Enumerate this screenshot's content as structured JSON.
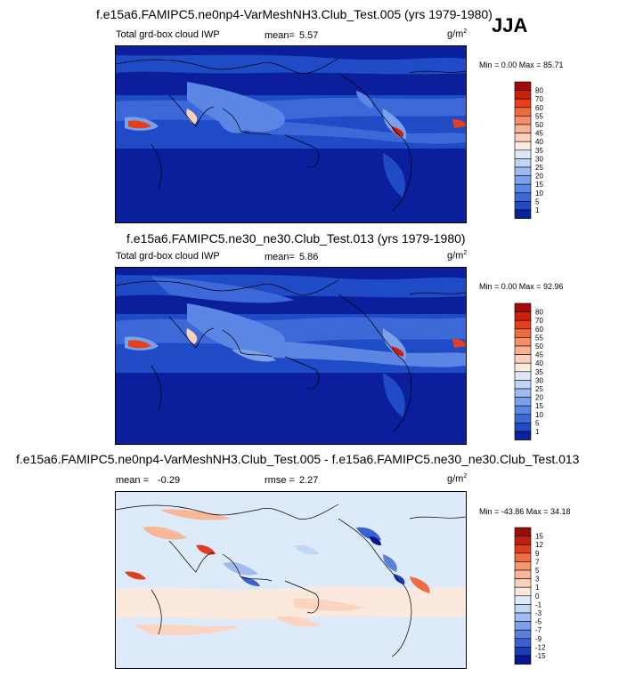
{
  "season_label": "JJA",
  "panels": [
    {
      "title": "f.e15a6.FAMIPC5.ne0np4-VarMeshNH3.Club_Test.005 (yrs 1979-1980)",
      "left_label": "Total grd-box cloud IWP",
      "mean_label": "mean=",
      "mean_value": "5.57",
      "rmse_label": "",
      "rmse_value": "",
      "units": "g/m",
      "units_exp": "2",
      "minmax": "Min =  0.00 Max = 85.71"
    },
    {
      "title": "f.e15a6.FAMIPC5.ne30_ne30.Club_Test.013 (yrs 1979-1980)",
      "left_label": "Total grd-box cloud IWP",
      "mean_label": "mean=",
      "mean_value": "5.86",
      "rmse_label": "",
      "rmse_value": "",
      "units": "g/m",
      "units_exp": "2",
      "minmax": "Min =  0.00 Max = 92.96"
    },
    {
      "title": "f.e15a6.FAMIPC5.ne0np4-VarMeshNH3.Club_Test.005 - f.e15a6.FAMIPC5.ne30_ne30.Club_Test.013",
      "left_label": "",
      "mean_label": "mean =",
      "mean_value": "-0.29",
      "rmse_label": "rmse =",
      "rmse_value": "2.27",
      "units": "g/m",
      "units_exp": "2",
      "minmax": "Min = -43.86 Max =  34.18"
    }
  ],
  "colorbars": {
    "iwp": {
      "labels": [
        "80",
        "70",
        "60",
        "55",
        "50",
        "45",
        "40",
        "35",
        "30",
        "25",
        "20",
        "15",
        "10",
        "5",
        "1"
      ],
      "colors": [
        "#a50a0a",
        "#cc1f0c",
        "#e4401c",
        "#ef6a3c",
        "#f58f68",
        "#f8b292",
        "#fbd0bc",
        "#fcebde",
        "#dde7f7",
        "#c0d4f3",
        "#9fbaf0",
        "#7ca0ea",
        "#5c86e3",
        "#3d69d8",
        "#1f4bc6",
        "#0b209c"
      ]
    },
    "diff": {
      "labels": [
        "15",
        "12",
        "9",
        "7",
        "5",
        "3",
        "1",
        "0",
        "-1",
        "-3",
        "-5",
        "-7",
        "-9",
        "-12",
        "-15"
      ],
      "colors": [
        "#980c0c",
        "#c21f0c",
        "#de3f1e",
        "#ee6d43",
        "#f5976f",
        "#f8b797",
        "#fbd3bf",
        "#fbe9dd",
        "#ddeafa",
        "#c2d6f6",
        "#a1bcf0",
        "#7d9fe7",
        "#5a80dc",
        "#3b60cf",
        "#1c3cba",
        "#071696"
      ]
    }
  },
  "chart_data": [
    {
      "type": "heatmap",
      "title": "f.e15a6.FAMIPC5.ne0np4-VarMeshNH3.Club_Test.005 (yrs 1979-1980)",
      "variable": "Total grd-box cloud IWP",
      "units": "g/m2",
      "season": "JJA",
      "mean": 5.57,
      "min": 0.0,
      "max": 85.71,
      "contour_levels": [
        1,
        5,
        10,
        15,
        20,
        25,
        30,
        35,
        40,
        45,
        50,
        55,
        60,
        70,
        80
      ]
    },
    {
      "type": "heatmap",
      "title": "f.e15a6.FAMIPC5.ne30_ne30.Club_Test.013 (yrs 1979-1980)",
      "variable": "Total grd-box cloud IWP",
      "units": "g/m2",
      "season": "JJA",
      "mean": 5.86,
      "min": 0.0,
      "max": 92.96,
      "contour_levels": [
        1,
        5,
        10,
        15,
        20,
        25,
        30,
        35,
        40,
        45,
        50,
        55,
        60,
        70,
        80
      ]
    },
    {
      "type": "heatmap",
      "title": "f.e15a6.FAMIPC5.ne0np4-VarMeshNH3.Club_Test.005 - f.e15a6.FAMIPC5.ne30_ne30.Club_Test.013",
      "units": "g/m2",
      "season": "JJA",
      "mean": -0.29,
      "rmse": 2.27,
      "min": -43.86,
      "max": 34.18,
      "contour_levels": [
        -15,
        -12,
        -9,
        -7,
        -5,
        -3,
        -1,
        0,
        1,
        3,
        5,
        7,
        9,
        12,
        15
      ]
    }
  ]
}
